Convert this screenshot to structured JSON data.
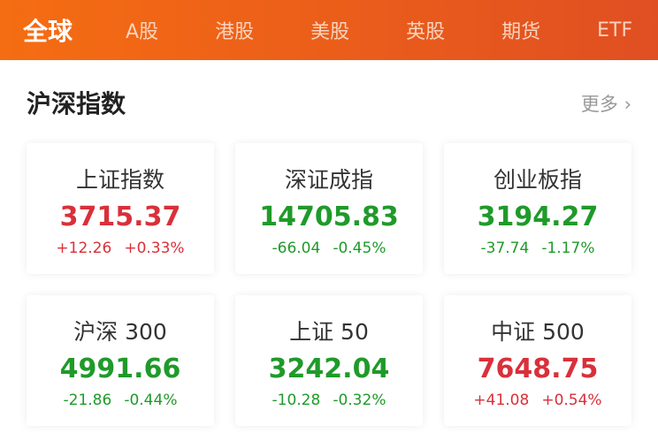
{
  "tabs": [
    "全球",
    "A股",
    "港股",
    "美股",
    "英股",
    "期货",
    "ETF"
  ],
  "active_tab": 0,
  "section": {
    "title": "沪深指数",
    "more": "更多 ›"
  },
  "colors": {
    "up": "#d9303a",
    "down": "#1f9a2a",
    "header": "#f56d12"
  },
  "cards": [
    {
      "name": "上证指数",
      "value": "3715.37",
      "change": "+12.26",
      "pct": "+0.33%",
      "dir": "up"
    },
    {
      "name": "深证成指",
      "value": "14705.83",
      "change": "-66.04",
      "pct": "-0.45%",
      "dir": "down"
    },
    {
      "name": "创业板指",
      "value": "3194.27",
      "change": "-37.74",
      "pct": "-1.17%",
      "dir": "down"
    },
    {
      "name": "沪深 300",
      "value": "4991.66",
      "change": "-21.86",
      "pct": "-0.44%",
      "dir": "down"
    },
    {
      "name": "上证 50",
      "value": "3242.04",
      "change": "-10.28",
      "pct": "-0.32%",
      "dir": "down"
    },
    {
      "name": "中证 500",
      "value": "7648.75",
      "change": "+41.08",
      "pct": "+0.54%",
      "dir": "up"
    }
  ]
}
